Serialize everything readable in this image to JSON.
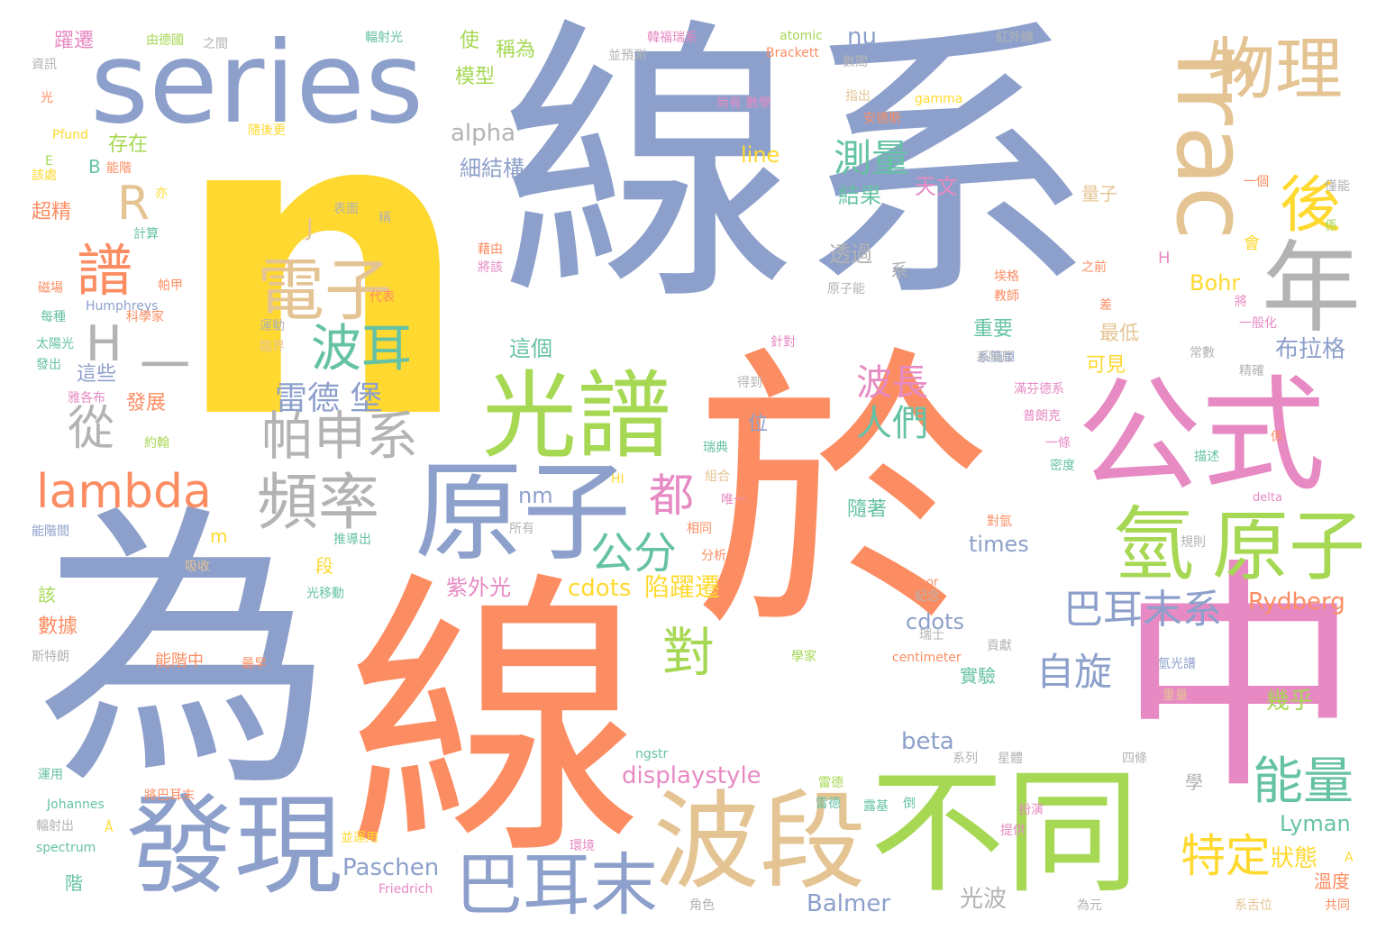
{
  "palette": {
    "blue": "#8da0cb",
    "orange": "#fc8d62",
    "green": "#a6d854",
    "teal": "#66c2a5",
    "pink": "#e78ac3",
    "yellow": "#ffd92f",
    "tan": "#e5c494",
    "gray": "#b3b3b3"
  },
  "words": [
    {
      "text": "n",
      "color": "yellow"
    },
    {
      "text": "線系",
      "color": "blue"
    },
    {
      "text": "為",
      "color": "blue"
    },
    {
      "text": "於",
      "color": "orange"
    },
    {
      "text": "線",
      "color": "orange"
    },
    {
      "text": "中",
      "color": "pink"
    },
    {
      "text": "不同",
      "color": "green"
    },
    {
      "text": "series",
      "color": "blue"
    },
    {
      "text": "公式",
      "color": "pink"
    },
    {
      "text": "frac",
      "color": "tan"
    },
    {
      "text": "發現",
      "color": "blue"
    },
    {
      "text": "波段",
      "color": "tan"
    },
    {
      "text": "原子",
      "color": "blue"
    },
    {
      "text": "光譜",
      "color": "green"
    },
    {
      "text": "年",
      "color": "gray"
    },
    {
      "text": "物理",
      "color": "tan"
    },
    {
      "text": "原子",
      "color": "green"
    },
    {
      "text": "氫",
      "color": "green"
    },
    {
      "text": "後",
      "color": "yellow"
    },
    {
      "text": "巴耳末",
      "color": "blue"
    },
    {
      "text": "電子",
      "color": "tan"
    },
    {
      "text": "頻率",
      "color": "gray"
    },
    {
      "text": "帕申系",
      "color": "gray"
    },
    {
      "text": "lambda",
      "color": "orange"
    },
    {
      "text": "能量",
      "color": "teal"
    },
    {
      "text": "R",
      "color": "tan"
    },
    {
      "text": "譜",
      "color": "orange"
    },
    {
      "text": "波耳",
      "color": "teal"
    },
    {
      "text": "H",
      "color": "gray"
    },
    {
      "text": "一",
      "color": "gray"
    },
    {
      "text": "從",
      "color": "gray"
    },
    {
      "text": "對",
      "color": "green"
    },
    {
      "text": "公分",
      "color": "teal"
    },
    {
      "text": "都",
      "color": "pink"
    },
    {
      "text": "雷德 堡",
      "color": "blue"
    },
    {
      "text": "巴耳末系",
      "color": "blue"
    },
    {
      "text": "特定",
      "color": "yellow"
    },
    {
      "text": "自旋",
      "color": "blue"
    },
    {
      "text": "波長",
      "color": "pink"
    },
    {
      "text": "人們",
      "color": "teal"
    },
    {
      "text": "測量",
      "color": "teal"
    },
    {
      "text": "Paschen",
      "color": "blue"
    },
    {
      "text": "cdots",
      "color": "yellow"
    },
    {
      "text": "陷躍遷",
      "color": "yellow"
    },
    {
      "text": "Balmer",
      "color": "blue"
    },
    {
      "text": "Lyman",
      "color": "teal"
    },
    {
      "text": "displaystyle",
      "color": "pink"
    },
    {
      "text": "Rydberg",
      "color": "orange"
    },
    {
      "text": "Bohr",
      "color": "yellow"
    },
    {
      "text": "beta",
      "color": "blue"
    },
    {
      "text": "alpha",
      "color": "gray"
    },
    {
      "text": "nu",
      "color": "blue"
    },
    {
      "text": "line",
      "color": "yellow"
    },
    {
      "text": "times",
      "color": "blue"
    },
    {
      "text": "cdots",
      "color": "blue"
    },
    {
      "text": "nm",
      "color": "blue"
    },
    {
      "text": "狀態",
      "color": "yellow"
    },
    {
      "text": "布拉格",
      "color": "blue"
    },
    {
      "text": "幾乎",
      "color": "green"
    },
    {
      "text": "光波",
      "color": "gray"
    },
    {
      "text": "紫外光",
      "color": "pink"
    },
    {
      "text": "細結構",
      "color": "blue"
    },
    {
      "text": "天文",
      "color": "pink"
    },
    {
      "text": "結果",
      "color": "teal"
    },
    {
      "text": "透過",
      "color": "gray"
    },
    {
      "text": "這個",
      "color": "teal"
    },
    {
      "text": "可見",
      "color": "yellow"
    },
    {
      "text": "最低",
      "color": "tan"
    },
    {
      "text": "重要",
      "color": "teal"
    },
    {
      "text": "實驗",
      "color": "teal"
    },
    {
      "text": "隨著",
      "color": "teal"
    },
    {
      "text": "量子",
      "color": "tan"
    },
    {
      "text": "存在",
      "color": "green"
    },
    {
      "text": "模型",
      "color": "green"
    },
    {
      "text": "稱為",
      "color": "green"
    },
    {
      "text": "使",
      "color": "green"
    },
    {
      "text": "躍遷",
      "color": "pink"
    },
    {
      "text": "超精",
      "color": "orange"
    },
    {
      "text": "這些",
      "color": "blue"
    },
    {
      "text": "發展",
      "color": "orange"
    },
    {
      "text": "數據",
      "color": "orange"
    },
    {
      "text": "位",
      "color": "blue"
    },
    {
      "text": "段",
      "color": "yellow"
    },
    {
      "text": "該",
      "color": "green"
    },
    {
      "text": "溫度",
      "color": "orange"
    },
    {
      "text": "J",
      "color": "tan"
    },
    {
      "text": "B",
      "color": "teal"
    },
    {
      "text": "m",
      "color": "yellow"
    },
    {
      "text": "系",
      "color": "gray"
    },
    {
      "text": "Humphreys",
      "color": "blue"
    },
    {
      "text": "Pfund",
      "color": "yellow"
    },
    {
      "text": "Johannes",
      "color": "teal"
    },
    {
      "text": "spectrum",
      "color": "teal"
    },
    {
      "text": "Friedrich",
      "color": "pink"
    },
    {
      "text": "atomic",
      "color": "green"
    },
    {
      "text": "Brackett",
      "color": "orange"
    },
    {
      "text": "gamma",
      "color": "yellow"
    },
    {
      "text": "centimeter",
      "color": "orange"
    },
    {
      "text": "ngstr",
      "color": "teal"
    },
    {
      "text": "delta",
      "color": "pink"
    },
    {
      "text": "HI",
      "color": "yellow"
    },
    {
      "text": "or",
      "color": "orange"
    },
    {
      "text": "學",
      "color": "gray"
    },
    {
      "text": "階",
      "color": "teal"
    },
    {
      "text": "光移動",
      "color": "teal"
    },
    {
      "text": "吸收",
      "color": "tan"
    },
    {
      "text": "推導出",
      "color": "teal"
    },
    {
      "text": "所有",
      "color": "gray"
    },
    {
      "text": "唯一",
      "color": "pink"
    },
    {
      "text": "分析",
      "color": "orange"
    },
    {
      "text": "紀念",
      "color": "gray"
    },
    {
      "text": "貢獻",
      "color": "gray"
    },
    {
      "text": "氫光譜",
      "color": "blue"
    },
    {
      "text": "重量",
      "color": "tan"
    },
    {
      "text": "扮演",
      "color": "pink"
    },
    {
      "text": "提供",
      "color": "pink"
    },
    {
      "text": "四條",
      "color": "gray"
    },
    {
      "text": "系列",
      "color": "gray"
    },
    {
      "text": "星體",
      "color": "gray"
    },
    {
      "text": "雷德",
      "color": "green"
    },
    {
      "text": "角色",
      "color": "gray"
    },
    {
      "text": "為元",
      "color": "gray"
    },
    {
      "text": "系舌位",
      "color": "tan"
    },
    {
      "text": "共同",
      "color": "orange"
    },
    {
      "text": "A",
      "color": "yellow"
    },
    {
      "text": "Å",
      "color": "yellow"
    },
    {
      "text": "相同",
      "color": "orange"
    },
    {
      "text": "組合",
      "color": "tan"
    },
    {
      "text": "瑞典",
      "color": "teal"
    },
    {
      "text": "得到",
      "color": "gray"
    },
    {
      "text": "針對",
      "color": "pink"
    },
    {
      "text": "系簡單",
      "color": "blue"
    },
    {
      "text": "運用",
      "color": "teal"
    },
    {
      "text": "學家",
      "color": "green"
    },
    {
      "text": "能階中",
      "color": "orange"
    },
    {
      "text": "最早",
      "color": "orange"
    },
    {
      "text": "能階間",
      "color": "blue"
    },
    {
      "text": "斯特朗",
      "color": "gray"
    },
    {
      "text": "輻射出",
      "color": "gray"
    },
    {
      "text": "將巴耳末",
      "color": "orange"
    },
    {
      "text": "約翰",
      "color": "green"
    },
    {
      "text": "雅各布",
      "color": "pink"
    },
    {
      "text": "發出",
      "color": "teal"
    },
    {
      "text": "太陽光",
      "color": "teal"
    },
    {
      "text": "每種",
      "color": "teal"
    },
    {
      "text": "磁場",
      "color": "orange"
    },
    {
      "text": "計算",
      "color": "teal"
    },
    {
      "text": "亦",
      "color": "yellow"
    },
    {
      "text": "能階",
      "color": "orange"
    },
    {
      "text": "資訊",
      "color": "gray"
    },
    {
      "text": "光",
      "color": "orange"
    },
    {
      "text": "由德國",
      "color": "green"
    },
    {
      "text": "之間",
      "color": "gray"
    },
    {
      "text": "輻射光",
      "color": "teal"
    },
    {
      "text": "韓福瑞系",
      "color": "pink"
    },
    {
      "text": "紅外線",
      "color": "gray"
    },
    {
      "text": "數間",
      "color": "gray"
    },
    {
      "text": "並預測",
      "color": "gray"
    },
    {
      "text": "尚有 數學",
      "color": "pink"
    },
    {
      "text": "安德斯",
      "color": "orange"
    },
    {
      "text": "指出",
      "color": "tan"
    },
    {
      "text": "隨後更",
      "color": "yellow"
    },
    {
      "text": "表面",
      "color": "gray"
    },
    {
      "text": "稱",
      "color": "gray"
    },
    {
      "text": "藉由",
      "color": "orange"
    },
    {
      "text": "將該",
      "color": "pink"
    },
    {
      "text": "原子能",
      "color": "gray"
    },
    {
      "text": "埃格",
      "color": "orange"
    },
    {
      "text": "教師",
      "color": "orange"
    },
    {
      "text": "之前",
      "color": "orange"
    },
    {
      "text": "系隔辰",
      "color": "gray"
    },
    {
      "text": "常數",
      "color": "gray"
    },
    {
      "text": "一般化",
      "color": "pink"
    },
    {
      "text": "精確",
      "color": "gray"
    },
    {
      "text": "滿芬德系",
      "color": "pink"
    },
    {
      "text": "普朗克",
      "color": "pink"
    },
    {
      "text": "一條",
      "color": "pink"
    },
    {
      "text": "密度",
      "color": "teal"
    },
    {
      "text": "描述",
      "color": "teal"
    },
    {
      "text": "規則",
      "color": "gray"
    },
    {
      "text": "對氫",
      "color": "orange"
    },
    {
      "text": "瑞士",
      "color": "gray"
    },
    {
      "text": "雷德",
      "color": "teal"
    },
    {
      "text": "露基",
      "color": "teal"
    },
    {
      "text": "倒",
      "color": "teal"
    },
    {
      "text": "係",
      "color": "orange"
    },
    {
      "text": "並運用",
      "color": "yellow"
    },
    {
      "text": "環境",
      "color": "pink"
    },
    {
      "text": "會",
      "color": "yellow"
    },
    {
      "text": "係",
      "color": "green"
    },
    {
      "text": "僅能",
      "color": "gray"
    },
    {
      "text": "一個",
      "color": "orange"
    },
    {
      "text": "將",
      "color": "pink"
    },
    {
      "text": "差",
      "color": "orange"
    },
    {
      "text": "代表",
      "color": "orange"
    },
    {
      "text": "帕甲",
      "color": "orange"
    },
    {
      "text": "科學家",
      "color": "orange"
    },
    {
      "text": "運動",
      "color": "gray"
    },
    {
      "text": "臨界",
      "color": "tan"
    },
    {
      "text": "E",
      "color": "green"
    },
    {
      "text": "該處",
      "color": "yellow"
    },
    {
      "text": "H",
      "color": "pink"
    }
  ]
}
